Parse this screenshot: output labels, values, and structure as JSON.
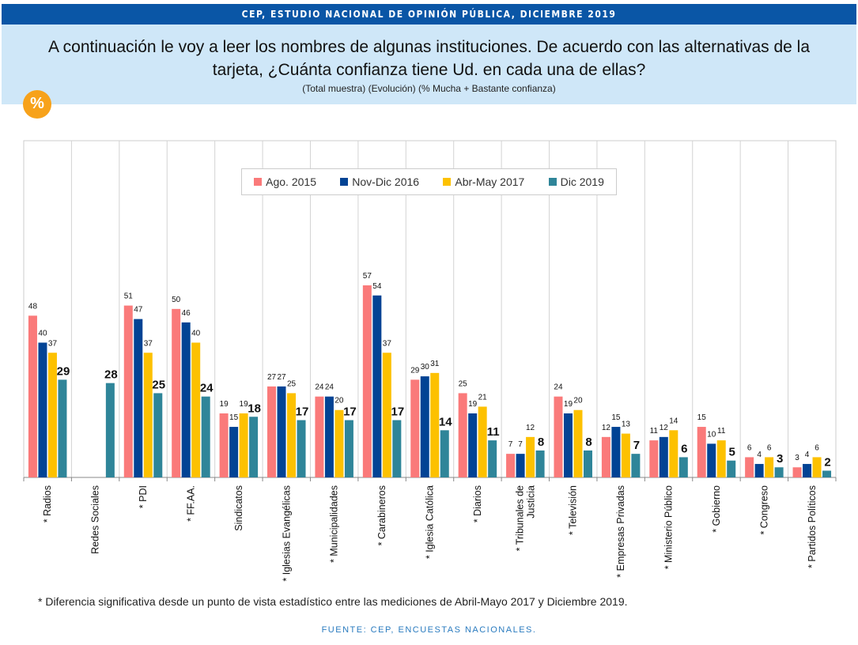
{
  "banner": "CEP, ESTUDIO NACIONAL DE OPINIÓN PÚBLICA, DICIEMBRE 2019",
  "question": "A continuación le voy a leer los nombres de algunas instituciones. De acuerdo con las alternativas de la tarjeta, ¿Cuánta confianza tiene Ud. en cada una de ellas?",
  "subtitle": "(Total muestra) (Evolución) (% Mucha + Bastante confianza)",
  "percent_badge": "%",
  "footnote": "* Diferencia significativa desde un punto de vista estadístico entre las mediciones de Abril-Mayo 2017 y Diciembre 2019.",
  "source": "FUENTE: CEP, ENCUESTAS NACIONALES.",
  "chart_data": {
    "type": "bar",
    "categories": [
      "* Radios",
      "Redes Sociales",
      "* PDI",
      "* FF.AA.",
      "Sindicatos",
      "* Iglesias Evangélicas",
      "* Municipalidades",
      "* Carabineros",
      "* Iglesia Católica",
      "* Diarios",
      "* Tribunales de\nJusticia",
      "* Televisión",
      "* Empresas Privadas",
      "* Ministerio Público",
      "* Gobierno",
      "* Congreso",
      "* Partidos Políticos"
    ],
    "series": [
      {
        "name": "Ago. 2015",
        "color": "#fa7a7a",
        "values": [
          48,
          null,
          51,
          50,
          19,
          27,
          24,
          57,
          29,
          25,
          7,
          24,
          12,
          11,
          15,
          6,
          3
        ]
      },
      {
        "name": "Nov-Dic 2016",
        "color": "#024394",
        "values": [
          40,
          null,
          47,
          46,
          15,
          27,
          24,
          54,
          30,
          19,
          7,
          19,
          15,
          12,
          10,
          4,
          4
        ]
      },
      {
        "name": "Abr-May 2017",
        "color": "#fdc100",
        "values": [
          37,
          null,
          37,
          40,
          19,
          25,
          20,
          37,
          31,
          21,
          12,
          20,
          13,
          14,
          11,
          6,
          6
        ]
      },
      {
        "name": "Dic 2019",
        "color": "#2f8599",
        "values": [
          29,
          28,
          25,
          24,
          18,
          17,
          17,
          17,
          14,
          11,
          8,
          8,
          7,
          6,
          5,
          3,
          2
        ]
      }
    ],
    "ylim": [
      0,
      60
    ],
    "grid": "vertical category separators",
    "legend": "top-center",
    "data_labels": true
  }
}
